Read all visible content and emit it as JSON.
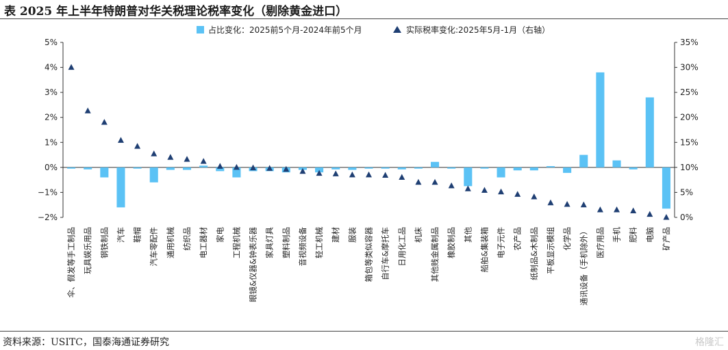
{
  "title": "表  2025 年上半年特朗普对华关税理论税率变化（剔除黄金进口）",
  "source": "资料来源：USITC，国泰海通证券研究",
  "watermark": "格隆汇",
  "colors": {
    "bar": "#5BC2F5",
    "marker": "#1F3F73",
    "axis": "#333333"
  },
  "chart_data": {
    "type": "bar",
    "legend_position": "top",
    "grid": false,
    "categories": [
      "伞、假发等手工制品",
      "玩具娱乐用品",
      "钢铁制品",
      "汽车",
      "鞋帽",
      "汽车零配件",
      "通用机械",
      "纺织品",
      "电工器材",
      "家电",
      "工程机械",
      "眼镜&仪器&钟表乐器",
      "家具灯具",
      "塑料制品",
      "音视频设备",
      "轻工机械",
      "建材",
      "服装",
      "箱包等类似容器",
      "自行车&摩托车",
      "日用化工品",
      "机床",
      "其他贱金属制品",
      "橡胶制品",
      "其他",
      "船舶&集装箱",
      "电子元件",
      "农产品",
      "纸制品&木制品",
      "平板显示模组",
      "化学品",
      "通讯设备（手机除外）",
      "医疗用品",
      "手机",
      "肥料",
      "电脑",
      "矿产品"
    ],
    "series": [
      {
        "name": "占比变化：2025前5个月-2024年前5个月",
        "type": "bar",
        "axis": "left",
        "values": [
          -0.05,
          -0.08,
          -0.4,
          -1.6,
          -0.05,
          -0.6,
          -0.1,
          -0.1,
          0.07,
          -0.15,
          -0.4,
          -0.15,
          -0.15,
          -0.2,
          -0.1,
          -0.2,
          -0.08,
          -0.1,
          -0.05,
          -0.05,
          -0.08,
          -0.05,
          0.22,
          -0.05,
          -0.75,
          -0.05,
          -0.4,
          -0.12,
          -0.12,
          0.05,
          -0.22,
          0.5,
          3.8,
          0.28,
          -0.08,
          2.8,
          -1.65
        ]
      },
      {
        "name": "实际税率变化:2025年5月-1月（右轴）",
        "type": "scatter",
        "axis": "right",
        "values": [
          30.0,
          21.3,
          19.0,
          15.4,
          14.2,
          12.7,
          12.0,
          11.6,
          11.2,
          10.2,
          10.0,
          9.9,
          9.8,
          9.6,
          9.2,
          8.8,
          8.7,
          8.5,
          8.5,
          8.4,
          8.0,
          7.0,
          7.0,
          6.3,
          5.7,
          5.4,
          5.1,
          4.6,
          4.1,
          2.9,
          2.6,
          2.5,
          1.5,
          1.5,
          1.3,
          0.6,
          0.0
        ]
      }
    ],
    "y_left": {
      "min": -2,
      "max": 5,
      "ticks": [
        "−2%",
        "−1%",
        "0%",
        "1%",
        "2%",
        "3%",
        "4%",
        "5%"
      ]
    },
    "y_right": {
      "min": 0,
      "max": 35,
      "ticks": [
        "0%",
        "5%",
        "10%",
        "15%",
        "20%",
        "25%",
        "30%",
        "35%"
      ]
    }
  }
}
